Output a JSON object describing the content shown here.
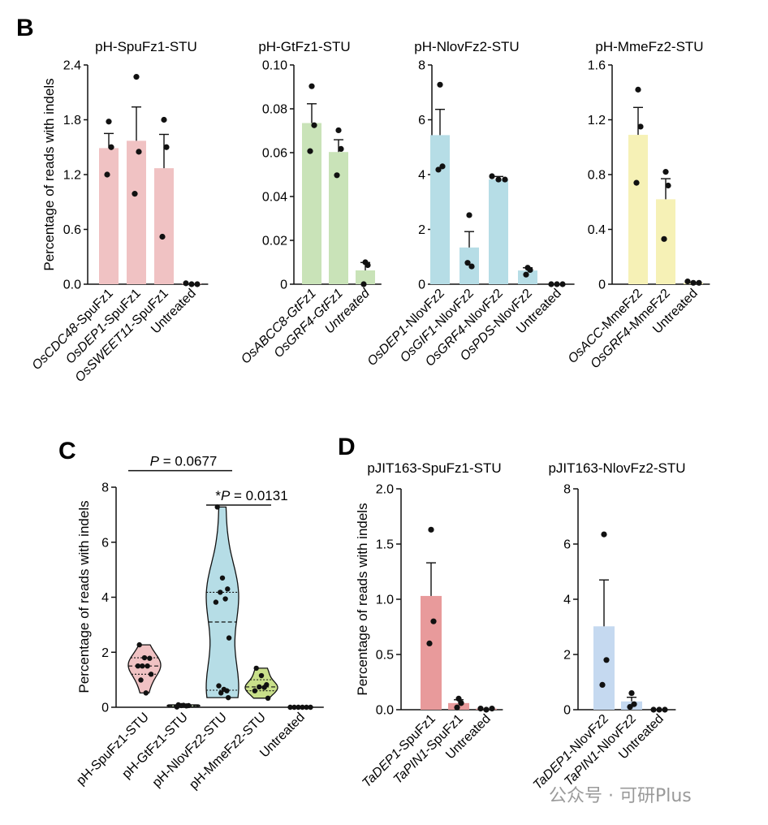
{
  "panels": {
    "B": "B",
    "C": "C",
    "D": "D"
  },
  "watermark": "公众号 · 可研Plus",
  "chart_data": [
    {
      "id": "B1",
      "type": "bar",
      "title": "pH-SpuFz1-STU",
      "panel": "B",
      "ylabel": "Percentage of reads with indels",
      "ylim": [
        0,
        2.4
      ],
      "yticks": [
        "0.0",
        "0.6",
        "1.2",
        "1.8",
        "2.4"
      ],
      "categories": [
        "OsCDC48-SpuFz1",
        "OsDEP1-SpuFz1",
        "OsSWEET11-SpuFz1",
        "Untreated"
      ],
      "category_italic": [
        "OsCDC48",
        "OsDEP1",
        "OsSWEET11",
        ""
      ],
      "category_rest": [
        "-SpuFz1",
        "-SpuFz1",
        "-SpuFz1",
        "Untreated"
      ],
      "values": [
        1.49,
        1.57,
        1.27,
        0.01
      ],
      "errors": [
        0.16,
        0.37,
        0.37,
        0.0
      ],
      "points": [
        [
          1.78,
          1.5,
          1.2
        ],
        [
          2.27,
          1.45,
          0.99
        ],
        [
          1.8,
          1.5,
          0.52
        ],
        [
          0.0,
          0.0,
          0.01
        ]
      ],
      "color": "#f0c2c3"
    },
    {
      "id": "B2",
      "type": "bar",
      "title": "pH-GtFz1-STU",
      "panel": "B",
      "ylim": [
        0,
        0.1
      ],
      "yticks": [
        "0",
        "0.02",
        "0.04",
        "0.06",
        "0.08",
        "0.10"
      ],
      "categories": [
        "OsABCC8-GtFz1",
        "OsGRF4-GtFz1",
        "Untreated"
      ],
      "category_italic": [
        "OsABCC8-GtFz1",
        "OsGRF4-GtFz1",
        "Untreated"
      ],
      "category_rest": [
        "",
        "",
        ""
      ],
      "values": [
        0.0735,
        0.0603,
        0.0063
      ],
      "errors": [
        0.0088,
        0.0056,
        0.0036
      ],
      "points": [
        [
          0.0903,
          0.0725,
          0.0607
        ],
        [
          0.0702,
          0.0617,
          0.0497
        ],
        [
          0.01,
          0.0087,
          0.0
        ]
      ],
      "color": "#c9e3b8"
    },
    {
      "id": "B3",
      "type": "bar",
      "title": "pH-NlovFz2-STU",
      "panel": "B",
      "ylim": [
        0,
        8
      ],
      "yticks": [
        "0",
        "2",
        "4",
        "6",
        "8"
      ],
      "categories": [
        "OsDEP1-NlovFz2",
        "OsGIF1-NlovFz2",
        "OsGRF4-NlovFz2",
        "OsPDS-NlovFz2",
        "Untreated"
      ],
      "category_italic": [
        "OsDEP1",
        "OsGIF1",
        "OsGRF4",
        "OsPDS",
        ""
      ],
      "category_rest": [
        "-NlovFz2",
        "-NlovFz2",
        "-NlovFz2",
        "-NlovFz2",
        "Untreated"
      ],
      "values": [
        5.44,
        1.34,
        3.83,
        0.5,
        0.0
      ],
      "errors": [
        0.94,
        0.58,
        0.1,
        0.1,
        0.0
      ],
      "points": [
        [
          7.28,
          4.3,
          4.18
        ],
        [
          2.52,
          0.65,
          0.78
        ],
        [
          3.94,
          3.82,
          3.82
        ],
        [
          0.6,
          0.52,
          0.35
        ],
        [
          0.0,
          0.0,
          0.0
        ]
      ],
      "color": "#b6dde6"
    },
    {
      "id": "B4",
      "type": "bar",
      "title": "pH-MmeFz2-STU",
      "panel": "B",
      "ylim": [
        0,
        1.6
      ],
      "yticks": [
        "0",
        "0.4",
        "0.8",
        "1.2",
        "1.6"
      ],
      "categories": [
        "OsACC-MmeFz2",
        "OsGRF4-MmeFz2",
        "Untreated"
      ],
      "category_italic": [
        "OsACC",
        "OsGRF4",
        ""
      ],
      "category_rest": [
        "-MmeFz2",
        "-MmeFz2",
        "Untreated"
      ],
      "values": [
        1.09,
        0.62,
        0.01
      ],
      "errors": [
        0.2,
        0.15,
        0.0
      ],
      "points": [
        [
          1.42,
          1.15,
          0.74
        ],
        [
          0.82,
          0.72,
          0.33
        ],
        [
          0.01,
          0.01,
          0.02
        ]
      ],
      "color": "#f6f1b6"
    },
    {
      "id": "C",
      "type": "violin",
      "panel": "C",
      "ylabel": "Percentage of reads with indels",
      "ylim": [
        0,
        8
      ],
      "yticks": [
        "0",
        "2",
        "4",
        "6",
        "8"
      ],
      "categories": [
        "pH-SpuFz1-STU",
        "pH-GtFz1-STU",
        "pH-NlovFz2-STU",
        "pH-MmeFz2-STU",
        "Untreated"
      ],
      "colors": [
        "#f0c2c3",
        "#c9e3b8",
        "#b6dde6",
        "#c9e08a",
        "#ffffff"
      ],
      "points": [
        [
          2.27,
          1.8,
          1.78,
          1.5,
          1.5,
          1.5,
          1.2,
          0.99,
          0.52
        ],
        [
          0.09,
          0.07,
          0.06,
          0.06,
          0.05,
          0.01
        ],
        [
          7.28,
          4.7,
          4.3,
          4.18,
          3.94,
          3.82,
          2.52,
          0.78,
          0.65,
          0.6,
          0.52,
          0.35
        ],
        [
          1.42,
          1.15,
          0.82,
          0.74,
          0.72,
          0.6,
          0.33
        ],
        [
          0.0,
          0.0,
          0.0,
          0.0,
          0.0,
          0.0
        ]
      ],
      "medians": [
        1.5,
        0.06,
        3.1,
        0.74,
        0.0
      ],
      "quartiles": [
        [
          1.2,
          1.8
        ],
        [
          0.05,
          0.07
        ],
        [
          0.62,
          4.18
        ],
        [
          0.6,
          1.0
        ],
        [
          0.0,
          0.0
        ]
      ],
      "annotations": [
        {
          "prefix": "",
          "italic": "P",
          "rest": " = 0.0677",
          "from": 0,
          "to": 2,
          "y": 8.6
        },
        {
          "prefix": "*",
          "italic": "P",
          "rest": " = 0.0131",
          "from": 2,
          "to": 3,
          "y": 7.35
        }
      ]
    },
    {
      "id": "D1",
      "type": "bar",
      "title": "pJIT163-SpuFz1-STU",
      "panel": "D",
      "ylabel": "Percentage of reads with indels",
      "ylim": [
        0,
        2.0
      ],
      "yticks": [
        "0.0",
        "0.5",
        "1.0",
        "1.5",
        "2.0"
      ],
      "categories": [
        "TaDEP1-SpuFz1",
        "TaPIN1-SpuFz1",
        "Untreated"
      ],
      "category_italic": [
        "TaDEP1",
        "TaPIN1",
        ""
      ],
      "category_rest": [
        "-SpuFz1",
        "-SpuFz1",
        "Untreated"
      ],
      "values": [
        1.03,
        0.06,
        0.01
      ],
      "errors": [
        0.3,
        0.03,
        0.0
      ],
      "points": [
        [
          1.63,
          0.8,
          0.6
        ],
        [
          0.1,
          0.06,
          0.02
        ],
        [
          0.0,
          0.01,
          0.01
        ]
      ],
      "color": "#e89a9b"
    },
    {
      "id": "D2",
      "type": "bar",
      "title": "pJIT163-NlovFz2-STU",
      "panel": "D",
      "ylim": [
        0,
        8
      ],
      "yticks": [
        "0",
        "2",
        "4",
        "6",
        "8"
      ],
      "categories": [
        "TaDEP1-NlovFz2",
        "TaPIN1-NlovFz2",
        "Untreated"
      ],
      "category_italic": [
        "TaDEP1",
        "TaPIN1",
        ""
      ],
      "category_rest": [
        "-NlovFz2",
        "-NlovFz2",
        "Untreated"
      ],
      "values": [
        3.02,
        0.3,
        0.0
      ],
      "errors": [
        1.68,
        0.15,
        0.0
      ],
      "points": [
        [
          6.35,
          1.8,
          0.9
        ],
        [
          0.6,
          0.2,
          0.1
        ],
        [
          0.0,
          0.0,
          0.0
        ]
      ],
      "color": "#c5d9f0"
    }
  ]
}
